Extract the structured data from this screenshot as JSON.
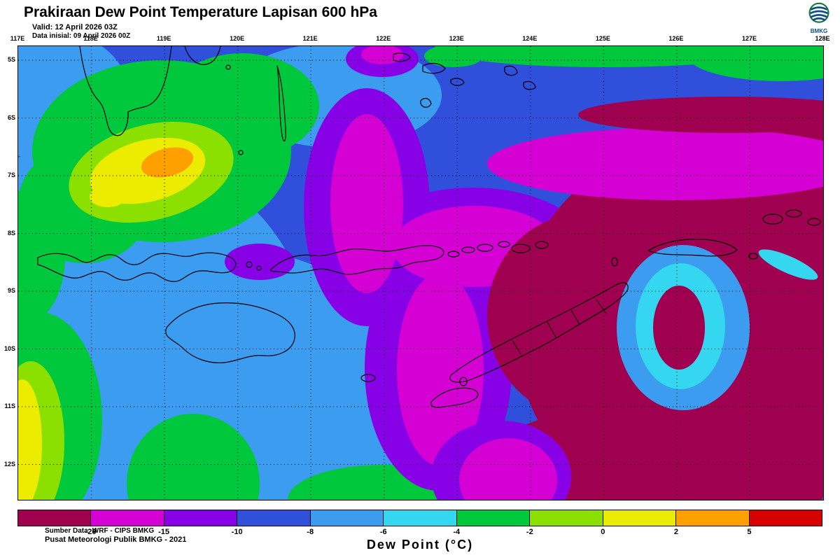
{
  "header": {
    "title": "Prakiraan Dew Point Temperature Lapisan 600 hPa",
    "valid": "Valid: 12 April 2026 03Z",
    "init": "Data inisial: 09 April 2026 00Z",
    "logo_text": "BMKG"
  },
  "map": {
    "lon_labels": [
      "117E",
      "118E",
      "119E",
      "120E",
      "121E",
      "122E",
      "123E",
      "124E",
      "125E",
      "126E",
      "127E",
      "128E"
    ],
    "lat_labels": [
      "5S",
      "6S",
      "7S",
      "8S",
      "9S",
      "10S",
      "11S",
      "12S"
    ],
    "source_line1": "Sumber Data: WRF - CIPS BMKG",
    "source_line2": "Pusat Meteorologi Publik BMKG - 2021"
  },
  "colorbar": {
    "tick_labels": [
      "-20",
      "-15",
      "-10",
      "-8",
      "-6",
      "-4",
      "-2",
      "0",
      "2",
      "5"
    ],
    "colors": [
      "#a00050",
      "#d400d4",
      "#8800e6",
      "#3050dc",
      "#3c9cf0",
      "#35d6f0",
      "#00c83c",
      "#8ce000",
      "#ecec00",
      "#ffa000",
      "#d80000"
    ],
    "caption": "Dew Point (°C)"
  }
}
